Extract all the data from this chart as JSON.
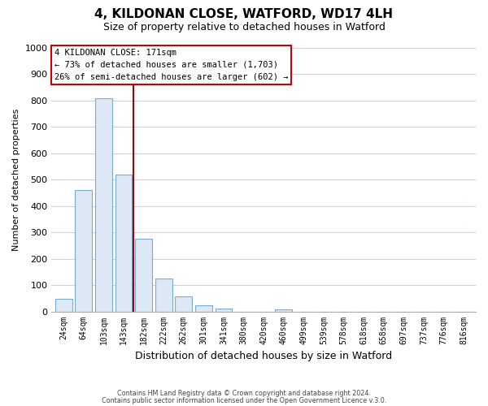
{
  "title": "4, KILDONAN CLOSE, WATFORD, WD17 4LH",
  "subtitle": "Size of property relative to detached houses in Watford",
  "xlabel": "Distribution of detached houses by size in Watford",
  "ylabel": "Number of detached properties",
  "bar_labels": [
    "24sqm",
    "64sqm",
    "103sqm",
    "143sqm",
    "182sqm",
    "222sqm",
    "262sqm",
    "301sqm",
    "341sqm",
    "380sqm",
    "420sqm",
    "460sqm",
    "499sqm",
    "539sqm",
    "578sqm",
    "618sqm",
    "658sqm",
    "697sqm",
    "737sqm",
    "776sqm",
    "816sqm"
  ],
  "bar_values": [
    47,
    460,
    810,
    520,
    275,
    125,
    57,
    22,
    12,
    0,
    0,
    8,
    0,
    0,
    0,
    0,
    0,
    0,
    0,
    0,
    0
  ],
  "bar_fill_color": "#dce8f5",
  "bar_edge_color": "#7aaad0",
  "vline_color": "#aa0000",
  "vline_x_index": 4,
  "annotation_title": "4 KILDONAN CLOSE: 171sqm",
  "annotation_line1": "← 73% of detached houses are smaller (1,703)",
  "annotation_line2": "26% of semi-detached houses are larger (602) →",
  "annotation_box_color": "#ffffff",
  "annotation_box_edge": "#cc0000",
  "ylim": [
    0,
    1000
  ],
  "yticks": [
    0,
    100,
    200,
    300,
    400,
    500,
    600,
    700,
    800,
    900,
    1000
  ],
  "footer1": "Contains HM Land Registry data © Crown copyright and database right 2024.",
  "footer2": "Contains public sector information licensed under the Open Government Licence v.3.0.",
  "bg_color": "#ffffff",
  "grid_color": "#c8d0d8",
  "title_fontsize": 11,
  "subtitle_fontsize": 9
}
